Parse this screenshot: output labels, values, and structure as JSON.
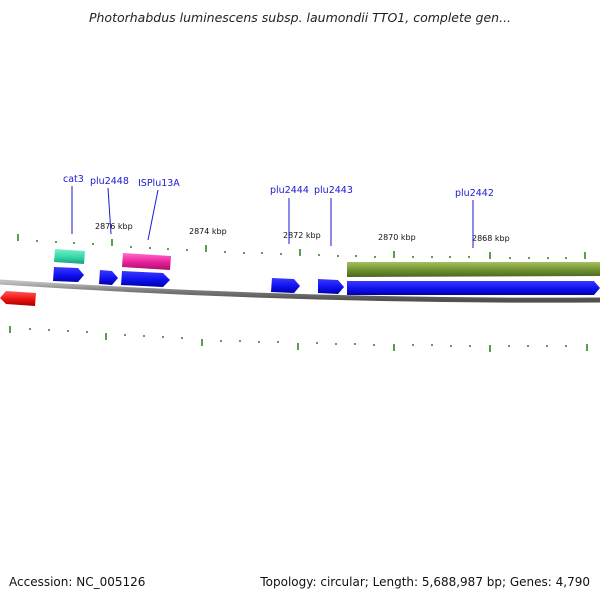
{
  "title": "Photorhabdus luminescens subsp. laumondii TTO1, complete gen...",
  "footer": {
    "accession": "Accession: NC_005126",
    "summary": "Topology: circular; Length: 5,688,987 bp; Genes: 4,790"
  },
  "colors": {
    "backbone": "#8a8a8a",
    "tick": "#2e8b22",
    "gene_cds": "#1010f0",
    "gene_rrna_teal": "#34d6a8",
    "gene_mobile": "#e8209a",
    "gene_red": "#ee1111",
    "gene_olive": "#6f9030",
    "label": "#1a1ad0"
  },
  "kbp_labels": [
    "2876 kbp",
    "2874 kbp",
    "2872 kbp",
    "2870 kbp",
    "2868 kbp"
  ],
  "gene_labels": [
    "cat3",
    "plu2448",
    "ISPlu13A",
    "plu2444",
    "plu2443",
    "plu2442"
  ]
}
